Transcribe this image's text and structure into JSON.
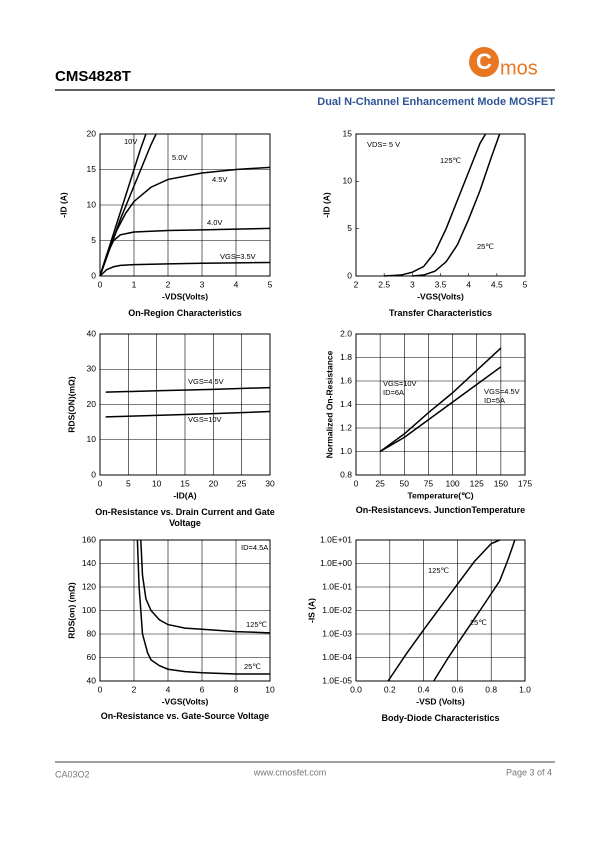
{
  "header": {
    "part": "CMS4828T",
    "logo_letter": "C",
    "logo_text": "mos",
    "subtitle": "Dual N-Channel Enhancement Mode MOSFET"
  },
  "footer": {
    "code": "CA03O2",
    "url": "www.cmosfet.com",
    "page": "Page 3 of  4"
  },
  "chart_data": [
    {
      "type": "line",
      "title": "On-Region Characteristics",
      "xlabel": "-VDS(Volts)",
      "ylabel": "-ID (A)",
      "xlim": [
        0,
        5
      ],
      "xticks": [
        0,
        1,
        2,
        3,
        4,
        5
      ],
      "ylim": [
        0,
        20
      ],
      "yticks": [
        0,
        5,
        10,
        15,
        20
      ],
      "grid": true,
      "series": [
        {
          "name": "10V",
          "color": "#000000",
          "x": [
            0,
            0.3,
            0.6,
            0.9,
            1.2,
            1.35
          ],
          "values": [
            0,
            4.5,
            9,
            13.5,
            18,
            20
          ]
        },
        {
          "name": "5.0V",
          "color": "#000000",
          "x": [
            0,
            0.3,
            0.6,
            0.9,
            1.2,
            1.5,
            1.65
          ],
          "values": [
            0,
            4,
            8,
            11.5,
            15,
            18.5,
            20
          ]
        },
        {
          "name": "4.5V",
          "color": "#000000",
          "x": [
            0,
            0.25,
            0.5,
            0.75,
            1,
            1.5,
            2,
            3,
            4,
            5
          ],
          "values": [
            0,
            3.5,
            6.5,
            8.8,
            10.5,
            12.5,
            13.6,
            14.5,
            15,
            15.3
          ]
        },
        {
          "name": "4.0V",
          "color": "#000000",
          "x": [
            0,
            0.2,
            0.4,
            0.6,
            1,
            2,
            3,
            4,
            5
          ],
          "values": [
            0,
            3,
            5,
            5.8,
            6.2,
            6.4,
            6.5,
            6.6,
            6.7
          ]
        },
        {
          "name": "VGS=3.5V",
          "color": "#000000",
          "x": [
            0,
            0.2,
            0.4,
            0.6,
            1,
            2,
            3,
            4,
            5
          ],
          "values": [
            0,
            0.9,
            1.3,
            1.5,
            1.6,
            1.7,
            1.8,
            1.85,
            1.9
          ]
        }
      ],
      "annotations": []
    },
    {
      "type": "line",
      "title": "Transfer Characteristics",
      "xlabel": "-VGS(Volts)",
      "ylabel": "-ID (A)",
      "xlim": [
        2,
        5
      ],
      "xticks": [
        2,
        2.5,
        3,
        3.5,
        4,
        4.5,
        5
      ],
      "ylim": [
        0,
        15
      ],
      "yticks": [
        0,
        5,
        10,
        15
      ],
      "grid": false,
      "series": [
        {
          "name": "125℃",
          "color": "#000000",
          "x": [
            2.5,
            2.8,
            3.0,
            3.2,
            3.4,
            3.6,
            3.8,
            4.0,
            4.2,
            4.3
          ],
          "values": [
            0,
            0.1,
            0.4,
            1.0,
            2.5,
            5,
            8,
            11,
            14,
            15
          ]
        },
        {
          "name": "25℃",
          "color": "#000000",
          "x": [
            3.0,
            3.2,
            3.4,
            3.6,
            3.8,
            4.0,
            4.2,
            4.4,
            4.55
          ],
          "values": [
            0,
            0.1,
            0.5,
            1.5,
            3.3,
            6,
            9,
            12.5,
            15
          ]
        }
      ],
      "annotations": [
        "VDS= 5 V"
      ]
    },
    {
      "type": "line",
      "title": "On-Resistance vs. Drain Current and Gate Voltage",
      "xlabel": "-ID(A)",
      "ylabel": "RDS(ON)(mΩ)",
      "xlim": [
        0,
        30
      ],
      "xticks": [
        0,
        5,
        10,
        15,
        20,
        25,
        30
      ],
      "ylim": [
        0,
        40
      ],
      "yticks": [
        0,
        10,
        20,
        30,
        40
      ],
      "grid": true,
      "series": [
        {
          "name": "VGS=4.5V",
          "color": "#000000",
          "x": [
            1,
            10,
            20,
            30
          ],
          "values": [
            23.5,
            23.9,
            24.3,
            24.8
          ]
        },
        {
          "name": "VGS=10V",
          "color": "#000000",
          "x": [
            1,
            10,
            20,
            30
          ],
          "values": [
            16.5,
            16.9,
            17.4,
            18
          ]
        }
      ],
      "annotations": []
    },
    {
      "type": "line",
      "title": "On-Resistancevs. JunctionTemperature",
      "xlabel": "Temperature(℃)",
      "ylabel": "Normalized On-Resistance",
      "xlim": [
        0,
        175
      ],
      "xticks": [
        0,
        25,
        50,
        75,
        100,
        125,
        150,
        175
      ],
      "ylim": [
        0.8,
        2.0
      ],
      "yticks": [
        0.8,
        {
          "value": 1,
          "label": "1.0"
        },
        1.2,
        1.4,
        1.6,
        1.8,
        {
          "value": 2,
          "label": "2.0"
        }
      ],
      "grid": true,
      "series": [
        {
          "name": "VGS=10V",
          "color": "#000000",
          "x": [
            25,
            50,
            75,
            100,
            125,
            150
          ],
          "values": [
            1.0,
            1.15,
            1.33,
            1.5,
            1.69,
            1.88
          ]
        },
        {
          "name": "VGS=4.5V",
          "color": "#000000",
          "x": [
            25,
            50,
            75,
            100,
            125,
            150
          ],
          "values": [
            1.0,
            1.12,
            1.27,
            1.42,
            1.57,
            1.72
          ]
        }
      ],
      "annotations": [
        "ID=6A",
        "ID=5A"
      ]
    },
    {
      "type": "line",
      "title": "On-Resistance vs. Gate-Source Voltage",
      "xlabel": "-VGS(Volts)",
      "ylabel": "RDS(on) (mΩ)",
      "xlim": [
        0,
        10
      ],
      "xticks": [
        0,
        2,
        4,
        6,
        8,
        10
      ],
      "ylim": [
        40,
        160
      ],
      "yticks": [
        40,
        60,
        80,
        100,
        120,
        140,
        160
      ],
      "grid": true,
      "series": [
        {
          "name": "125℃",
          "color": "#000000",
          "x": [
            2.4,
            2.5,
            2.7,
            3,
            3.5,
            4,
            5,
            6,
            8,
            10
          ],
          "values": [
            160,
            130,
            110,
            100,
            92,
            88,
            85,
            84,
            82,
            81
          ]
        },
        {
          "name": "25℃",
          "color": "#000000",
          "x": [
            2.2,
            2.3,
            2.5,
            2.8,
            3,
            3.5,
            4,
            5,
            6,
            8,
            10
          ],
          "values": [
            160,
            120,
            80,
            64,
            58,
            53,
            50,
            48,
            47,
            46,
            46
          ]
        }
      ],
      "annotations": [
        "ID=4.5A"
      ]
    },
    {
      "type": "line",
      "title": "Body-Diode Characteristics",
      "xlabel": "-VSD (Volts)",
      "ylabel": "-IS (A)",
      "xlim": [
        0,
        1
      ],
      "xticks": [
        {
          "value": 0,
          "label": "0.0"
        },
        0.2,
        0.4,
        0.6,
        0.8,
        {
          "value": 1,
          "label": "1.0"
        }
      ],
      "ylim": [
        1e-05,
        10
      ],
      "ylog": true,
      "yticks": [
        {
          "value": 1e-05,
          "label": "1.0E-05"
        },
        {
          "value": 0.0001,
          "label": "1.0E-04"
        },
        {
          "value": 0.001,
          "label": "1.0E-03"
        },
        {
          "value": 0.01,
          "label": "1.0E-02"
        },
        {
          "value": 0.1,
          "label": "1.0E-01"
        },
        {
          "value": 1,
          "label": "1.0E+00"
        },
        {
          "value": 10,
          "label": "1.0E+01"
        }
      ],
      "grid": true,
      "series": [
        {
          "name": "125℃",
          "color": "#000000",
          "x": [
            0.19,
            0.3,
            0.4,
            0.5,
            0.6,
            0.7,
            0.8,
            0.85
          ],
          "values": [
            1e-05,
            0.00015,
            0.0015,
            0.014,
            0.13,
            1.2,
            7,
            10
          ]
        },
        {
          "name": "25℃",
          "color": "#000000",
          "x": [
            0.46,
            0.55,
            0.65,
            0.75,
            0.85,
            0.9,
            0.94
          ],
          "values": [
            1e-05,
            0.00011,
            0.0013,
            0.015,
            0.18,
            1.5,
            10
          ]
        }
      ],
      "annotations": []
    }
  ]
}
